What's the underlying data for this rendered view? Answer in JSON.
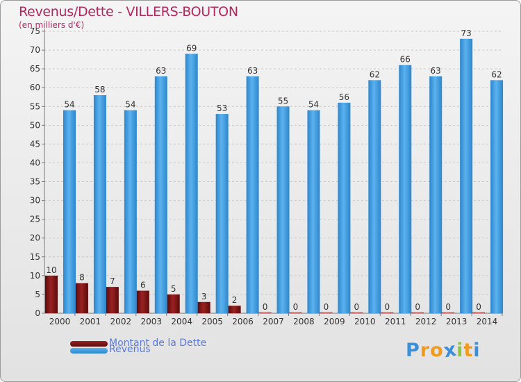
{
  "chart_data": {
    "type": "bar",
    "title": "Revenus/Dette - VILLERS-BOUTON",
    "subtitle": "(en milliers d'€)",
    "xlabel": "",
    "ylabel": "",
    "ylim": [
      0,
      75
    ],
    "yticks": [
      0,
      5,
      10,
      15,
      20,
      25,
      30,
      35,
      40,
      45,
      50,
      55,
      60,
      65,
      70,
      75
    ],
    "grid": true,
    "categories": [
      "2000",
      "2001",
      "2002",
      "2003",
      "2004",
      "2005",
      "2006",
      "2007",
      "2008",
      "2009",
      "2010",
      "2011",
      "2012",
      "2013",
      "2014"
    ],
    "series": [
      {
        "name": "Montant de la Dette",
        "color": "#7a1515",
        "values": [
          10,
          8,
          7,
          6,
          5,
          3,
          2,
          0,
          0,
          0,
          0,
          0,
          0,
          0,
          0
        ]
      },
      {
        "name": "Revenus",
        "color": "#4aa2e3",
        "values": [
          54,
          58,
          54,
          63,
          69,
          53,
          63,
          55,
          54,
          56,
          62,
          66,
          63,
          73,
          62
        ]
      }
    ],
    "legend_position": "bottom-left"
  },
  "logo": {
    "letters": [
      "P",
      "r",
      "o",
      "x",
      "i",
      "t",
      "i"
    ],
    "colors": [
      "#3a8fd8",
      "#f29a1c",
      "#f29a1c",
      "#3a8fd8",
      "#8cc63f",
      "#f29a1c",
      "#3a8fd8"
    ]
  }
}
